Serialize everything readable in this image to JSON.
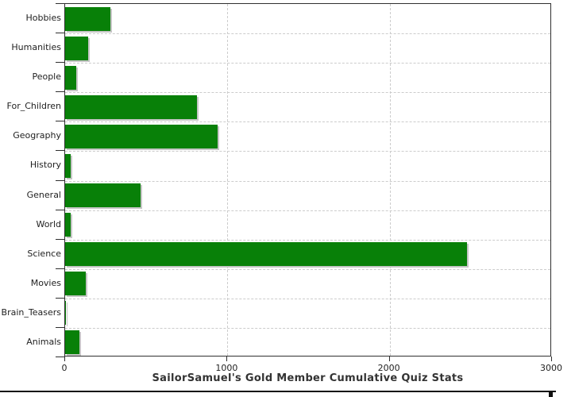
{
  "chart_data": {
    "type": "bar",
    "orientation": "horizontal",
    "title": "SailorSamuel's Gold Member Cumulative Quiz Stats",
    "categories": [
      "Hobbies",
      "Humanities",
      "People",
      "For_Children",
      "Geography",
      "History",
      "General",
      "World",
      "Science",
      "Movies",
      "Brain_Teasers",
      "Animals"
    ],
    "values": [
      280,
      140,
      70,
      810,
      940,
      35,
      465,
      35,
      2475,
      125,
      5,
      90
    ],
    "xlim": [
      0,
      3000
    ],
    "xticks": [
      0,
      1000,
      2000,
      3000
    ],
    "ylabel": "",
    "xlabel": "",
    "legend": "none",
    "grid": "dashed",
    "bar_color": "#088008",
    "shadow_color": "#c6c6c6",
    "axis_color": "#2f2f2f",
    "grid_color": "#cccccc",
    "label_color": "#222222",
    "title_color": "#333333",
    "background": "#ffffff"
  }
}
